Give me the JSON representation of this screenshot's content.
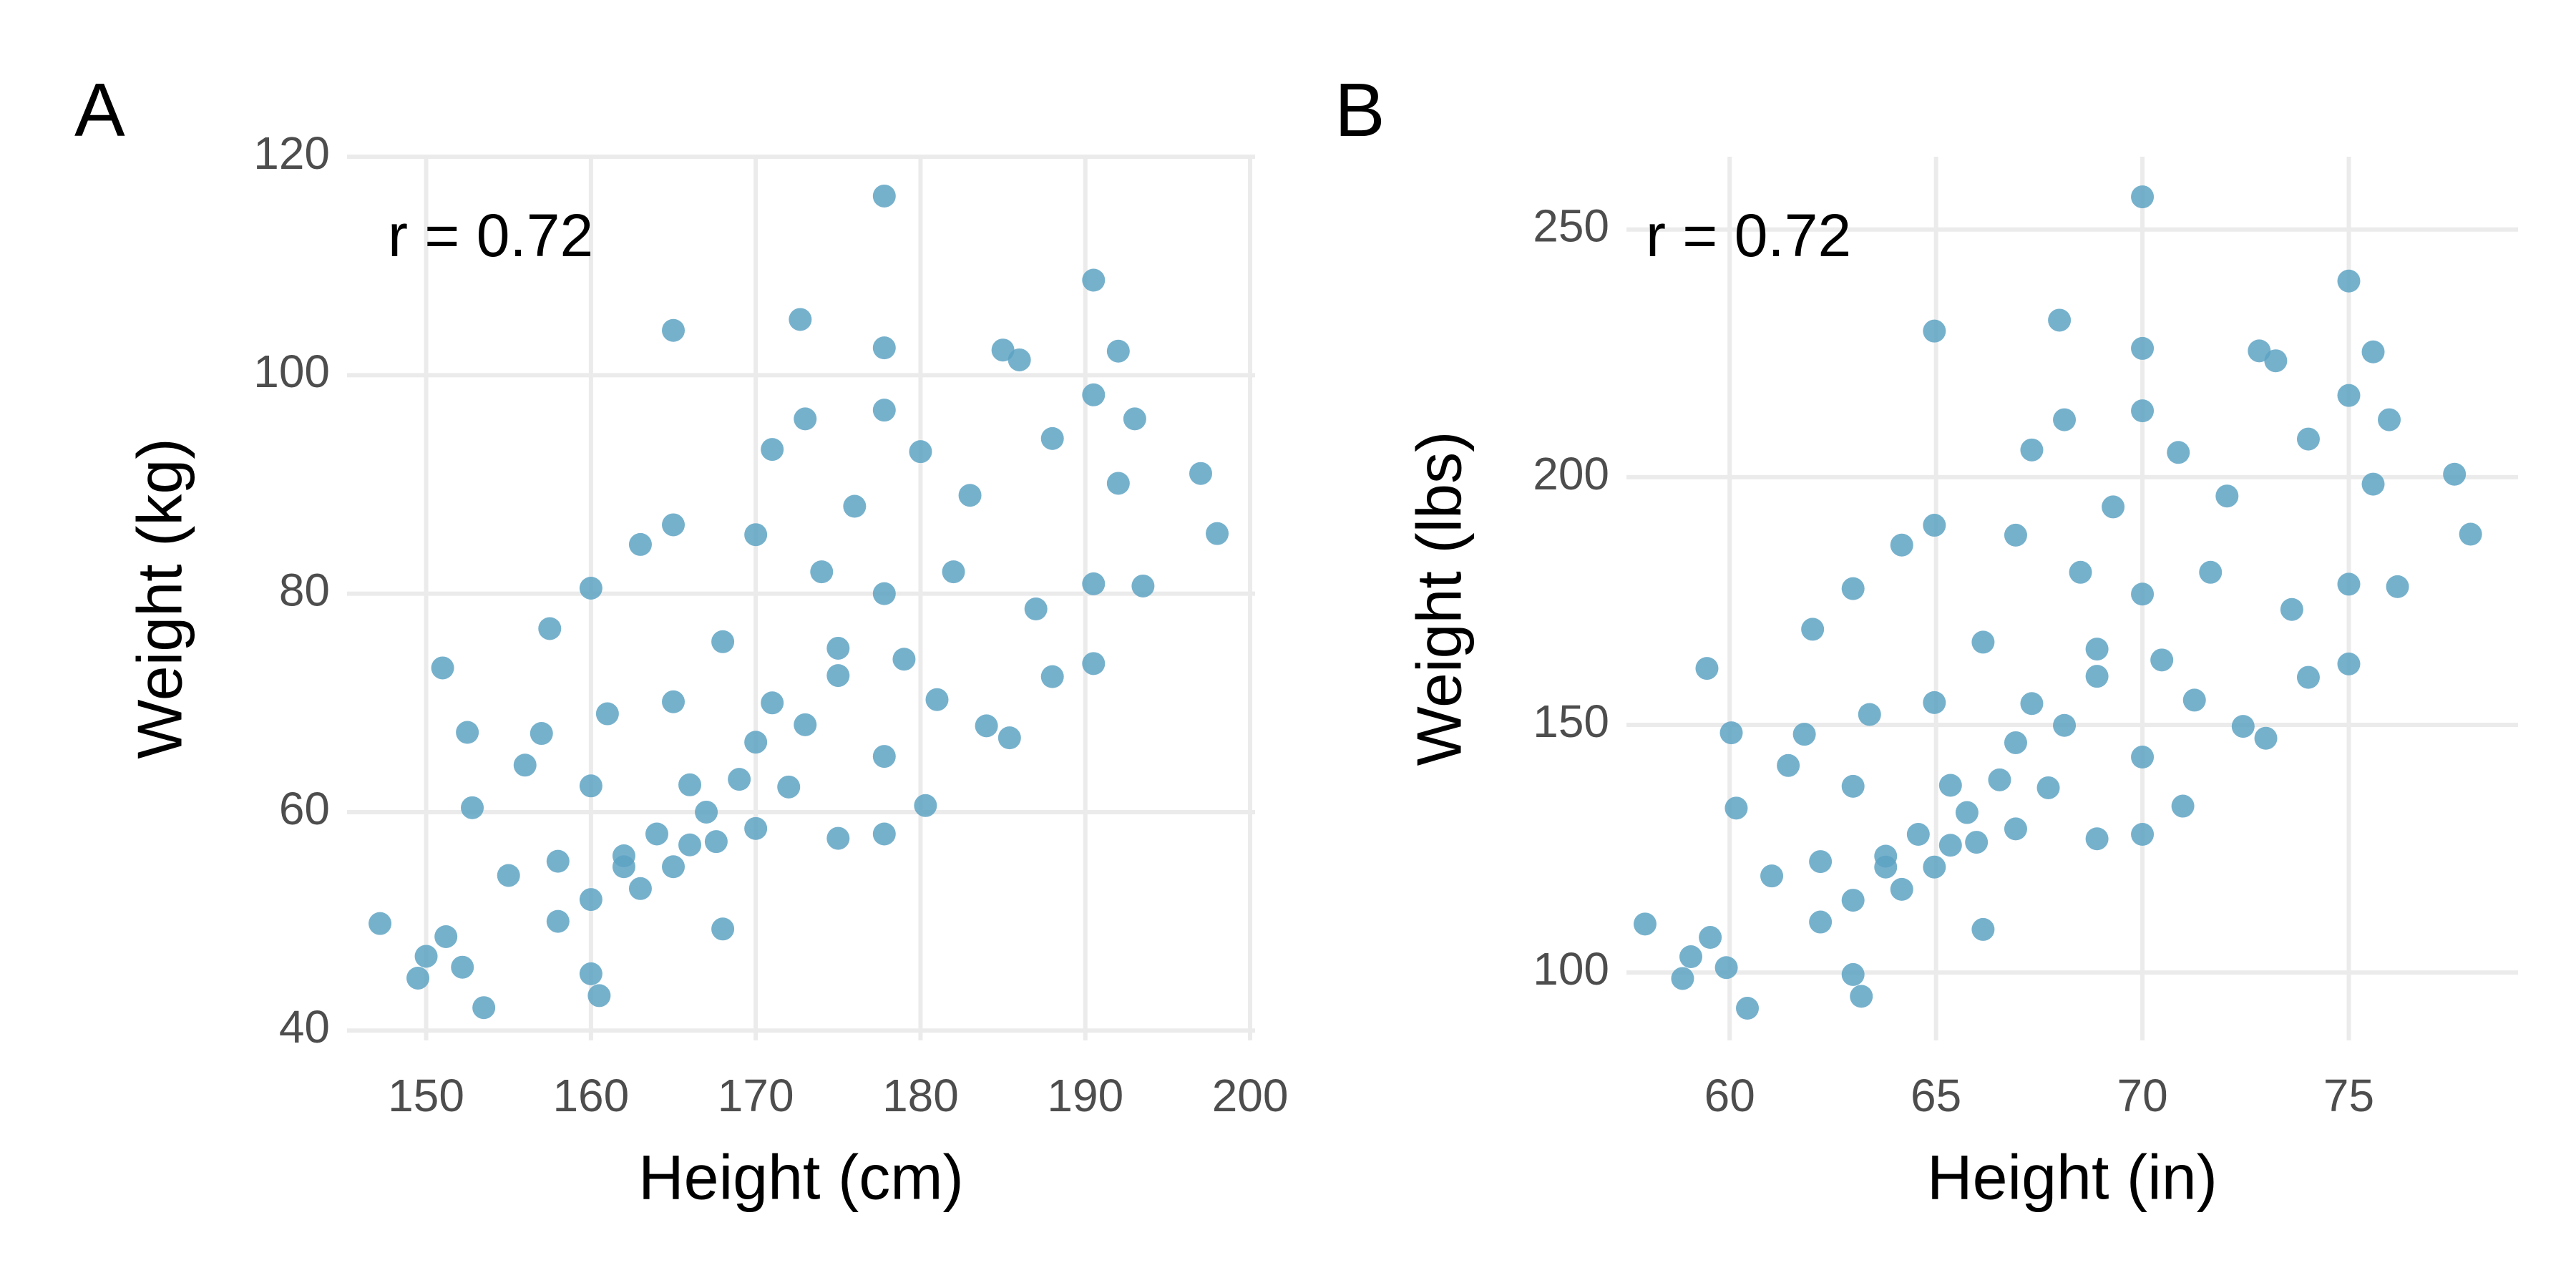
{
  "chart_data": [
    {
      "type": "scatter",
      "panel_label": "A",
      "annotation": "r = 0.72",
      "x_label": "Height (cm)",
      "y_label": "Weight (kg)",
      "color": "#5ea3c3",
      "grid": true,
      "xlim": [
        145.2,
        200.3
      ],
      "ylim": [
        39.1,
        120
      ],
      "xticks": [
        150,
        160,
        170,
        180,
        190,
        200
      ],
      "yticks": [
        40,
        60,
        80,
        100,
        120
      ],
      "x": [
        147.2,
        149.5,
        150,
        151,
        151.2,
        152.2,
        152.5,
        152.8,
        153.5,
        155,
        156,
        157,
        157.5,
        158,
        160,
        160,
        160,
        160.5,
        161,
        162,
        163,
        164,
        165,
        165,
        165,
        166,
        167.6,
        168,
        168,
        170,
        170,
        170,
        171,
        172,
        172.7,
        173,
        174,
        175,
        175,
        176,
        177.8,
        177.8,
        177.8,
        177.8,
        177.8,
        177.8,
        179,
        180,
        180.3,
        181,
        182,
        183,
        184,
        185,
        185.4,
        186,
        187,
        188,
        188,
        190.5,
        190.5,
        190.5,
        190.5,
        192,
        192,
        193,
        193.5,
        197,
        198,
        163,
        165,
        167,
        169,
        171,
        173,
        175,
        160,
        162,
        158,
        166
      ],
      "y": [
        49.8,
        44.8,
        46.8,
        73.2,
        48.6,
        45.8,
        67.3,
        60.4,
        42.1,
        54.2,
        64.3,
        67.2,
        76.8,
        55.5,
        80.5,
        62.4,
        45.2,
        43.2,
        69,
        55,
        84.5,
        58,
        104.1,
        86.3,
        70.1,
        62.5,
        57.3,
        49.3,
        75.6,
        85.4,
        66.4,
        58.5,
        93.2,
        62.3,
        105.1,
        96,
        82,
        72.5,
        57.6,
        88,
        116.4,
        102.5,
        96.8,
        80,
        65.1,
        58,
        74,
        93,
        60.6,
        70.3,
        82,
        89,
        67.9,
        102.3,
        66.8,
        101.4,
        78.6,
        72.4,
        94.2,
        108.7,
        98.2,
        73.6,
        80.9,
        102.2,
        90.1,
        96,
        80.7,
        91,
        85.5,
        53,
        55,
        60,
        63,
        70,
        68,
        75,
        52,
        56,
        50,
        57
      ]
    },
    {
      "type": "scatter",
      "panel_label": "B",
      "annotation": "r = 0.72",
      "x_label": "Height (in)",
      "y_label": "Weight (lbs)",
      "color": "#5ea3c3",
      "grid": true,
      "xlim": [
        57.5,
        79.1
      ],
      "ylim": [
        86.3,
        264.7
      ],
      "xticks": [
        60,
        65,
        70,
        75
      ],
      "yticks": [
        100,
        150,
        200,
        250
      ],
      "x": [
        57.95,
        58.86,
        59.06,
        59.45,
        59.53,
        59.92,
        60.04,
        60.16,
        60.43,
        61.02,
        61.42,
        61.81,
        62.01,
        62.2,
        62.99,
        62.99,
        62.99,
        63.19,
        63.39,
        63.78,
        64.17,
        64.57,
        64.96,
        64.96,
        64.96,
        65.35,
        65.98,
        66.14,
        66.14,
        66.93,
        66.93,
        66.93,
        67.32,
        67.72,
        67.99,
        68.11,
        68.5,
        68.9,
        68.9,
        69.29,
        70,
        70,
        70,
        70,
        70,
        70,
        70.47,
        70.87,
        70.98,
        71.26,
        71.65,
        72.05,
        72.44,
        72.83,
        72.99,
        73.23,
        73.62,
        74.02,
        74.02,
        75,
        75,
        75,
        75,
        75.59,
        75.59,
        75.98,
        76.18,
        77.56,
        77.95,
        64.17,
        64.96,
        65.75,
        66.54,
        67.32,
        68.11,
        68.9,
        62.99,
        63.78,
        62.2,
        65.35
      ],
      "y": [
        109.8,
        98.8,
        103.2,
        161.4,
        107.1,
        101,
        148.4,
        133.2,
        92.8,
        119.5,
        141.8,
        148.1,
        169.3,
        122.4,
        177.5,
        137.6,
        99.6,
        95.2,
        152.1,
        121.3,
        186.3,
        127.9,
        229.5,
        190.3,
        154.5,
        137.8,
        126.3,
        108.7,
        166.7,
        188.3,
        146.4,
        129,
        205.5,
        137.3,
        231.7,
        211.6,
        180.8,
        159.8,
        127,
        194,
        256.6,
        226,
        213.4,
        176.4,
        143.5,
        127.9,
        163.1,
        205,
        133.6,
        155,
        180.8,
        196.2,
        149.7,
        225.5,
        147.3,
        223.5,
        173.3,
        159.6,
        207.7,
        239.6,
        216.5,
        162.3,
        178.4,
        225.3,
        198.6,
        211.6,
        177.9,
        200.6,
        188.5,
        116.8,
        121.3,
        132.3,
        138.9,
        154.3,
        149.9,
        165.3,
        114.6,
        123.5,
        110.2,
        125.7
      ]
    }
  ]
}
